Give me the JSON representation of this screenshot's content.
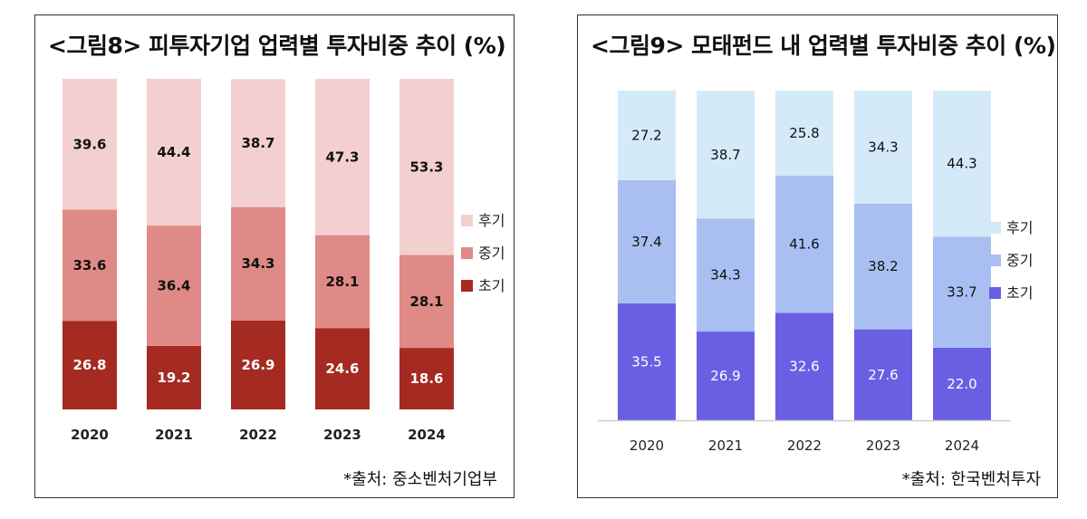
{
  "charts": [
    {
      "title": "<그림8> 피투자기업 업력별 투자비중 추이 (%)",
      "source": "*출처: 중소벤처기업부",
      "chart_data": {
        "type": "bar",
        "stacked": true,
        "categories": [
          "2020",
          "2021",
          "2022",
          "2023",
          "2024"
        ],
        "series": [
          {
            "name": "초기",
            "values": [
              26.8,
              19.2,
              26.9,
              24.6,
              18.6
            ],
            "color": "#a52a22",
            "label_color": "#ffffff"
          },
          {
            "name": "중기",
            "values": [
              33.6,
              36.4,
              34.3,
              28.1,
              28.1
            ],
            "color": "#e08a87",
            "label_color": "#111111"
          },
          {
            "name": "후기",
            "values": [
              39.6,
              44.4,
              38.7,
              47.3,
              53.3
            ],
            "color": "#f3d0cf",
            "label_color": "#111111"
          }
        ],
        "legend_order": [
          "후기",
          "중기",
          "초기"
        ],
        "legend_position": "right",
        "ylim": [
          0,
          100
        ],
        "grid": false
      }
    },
    {
      "title": "<그림9> 모태펀드 내 업력별 투자비중 추이 (%)",
      "source": "*출처: 한국벤처투자",
      "chart_data": {
        "type": "bar",
        "stacked": true,
        "categories": [
          "2020",
          "2021",
          "2022",
          "2023",
          "2024"
        ],
        "series": [
          {
            "name": "초기",
            "values": [
              35.5,
              26.9,
              32.6,
              27.6,
              22.0
            ],
            "color": "#6a5fe3",
            "label_color": "#ffffff"
          },
          {
            "name": "중기",
            "values": [
              37.4,
              34.3,
              41.6,
              38.2,
              33.7
            ],
            "color": "#a9bff2",
            "label_color": "#111111"
          },
          {
            "name": "후기",
            "values": [
              27.2,
              38.7,
              25.8,
              34.3,
              44.3
            ],
            "color": "#d5eaf8",
            "label_color": "#111111"
          }
        ],
        "legend_order": [
          "후기",
          "중기",
          "초기"
        ],
        "legend_position": "right",
        "ylim": [
          0,
          100
        ],
        "grid": false
      }
    }
  ]
}
